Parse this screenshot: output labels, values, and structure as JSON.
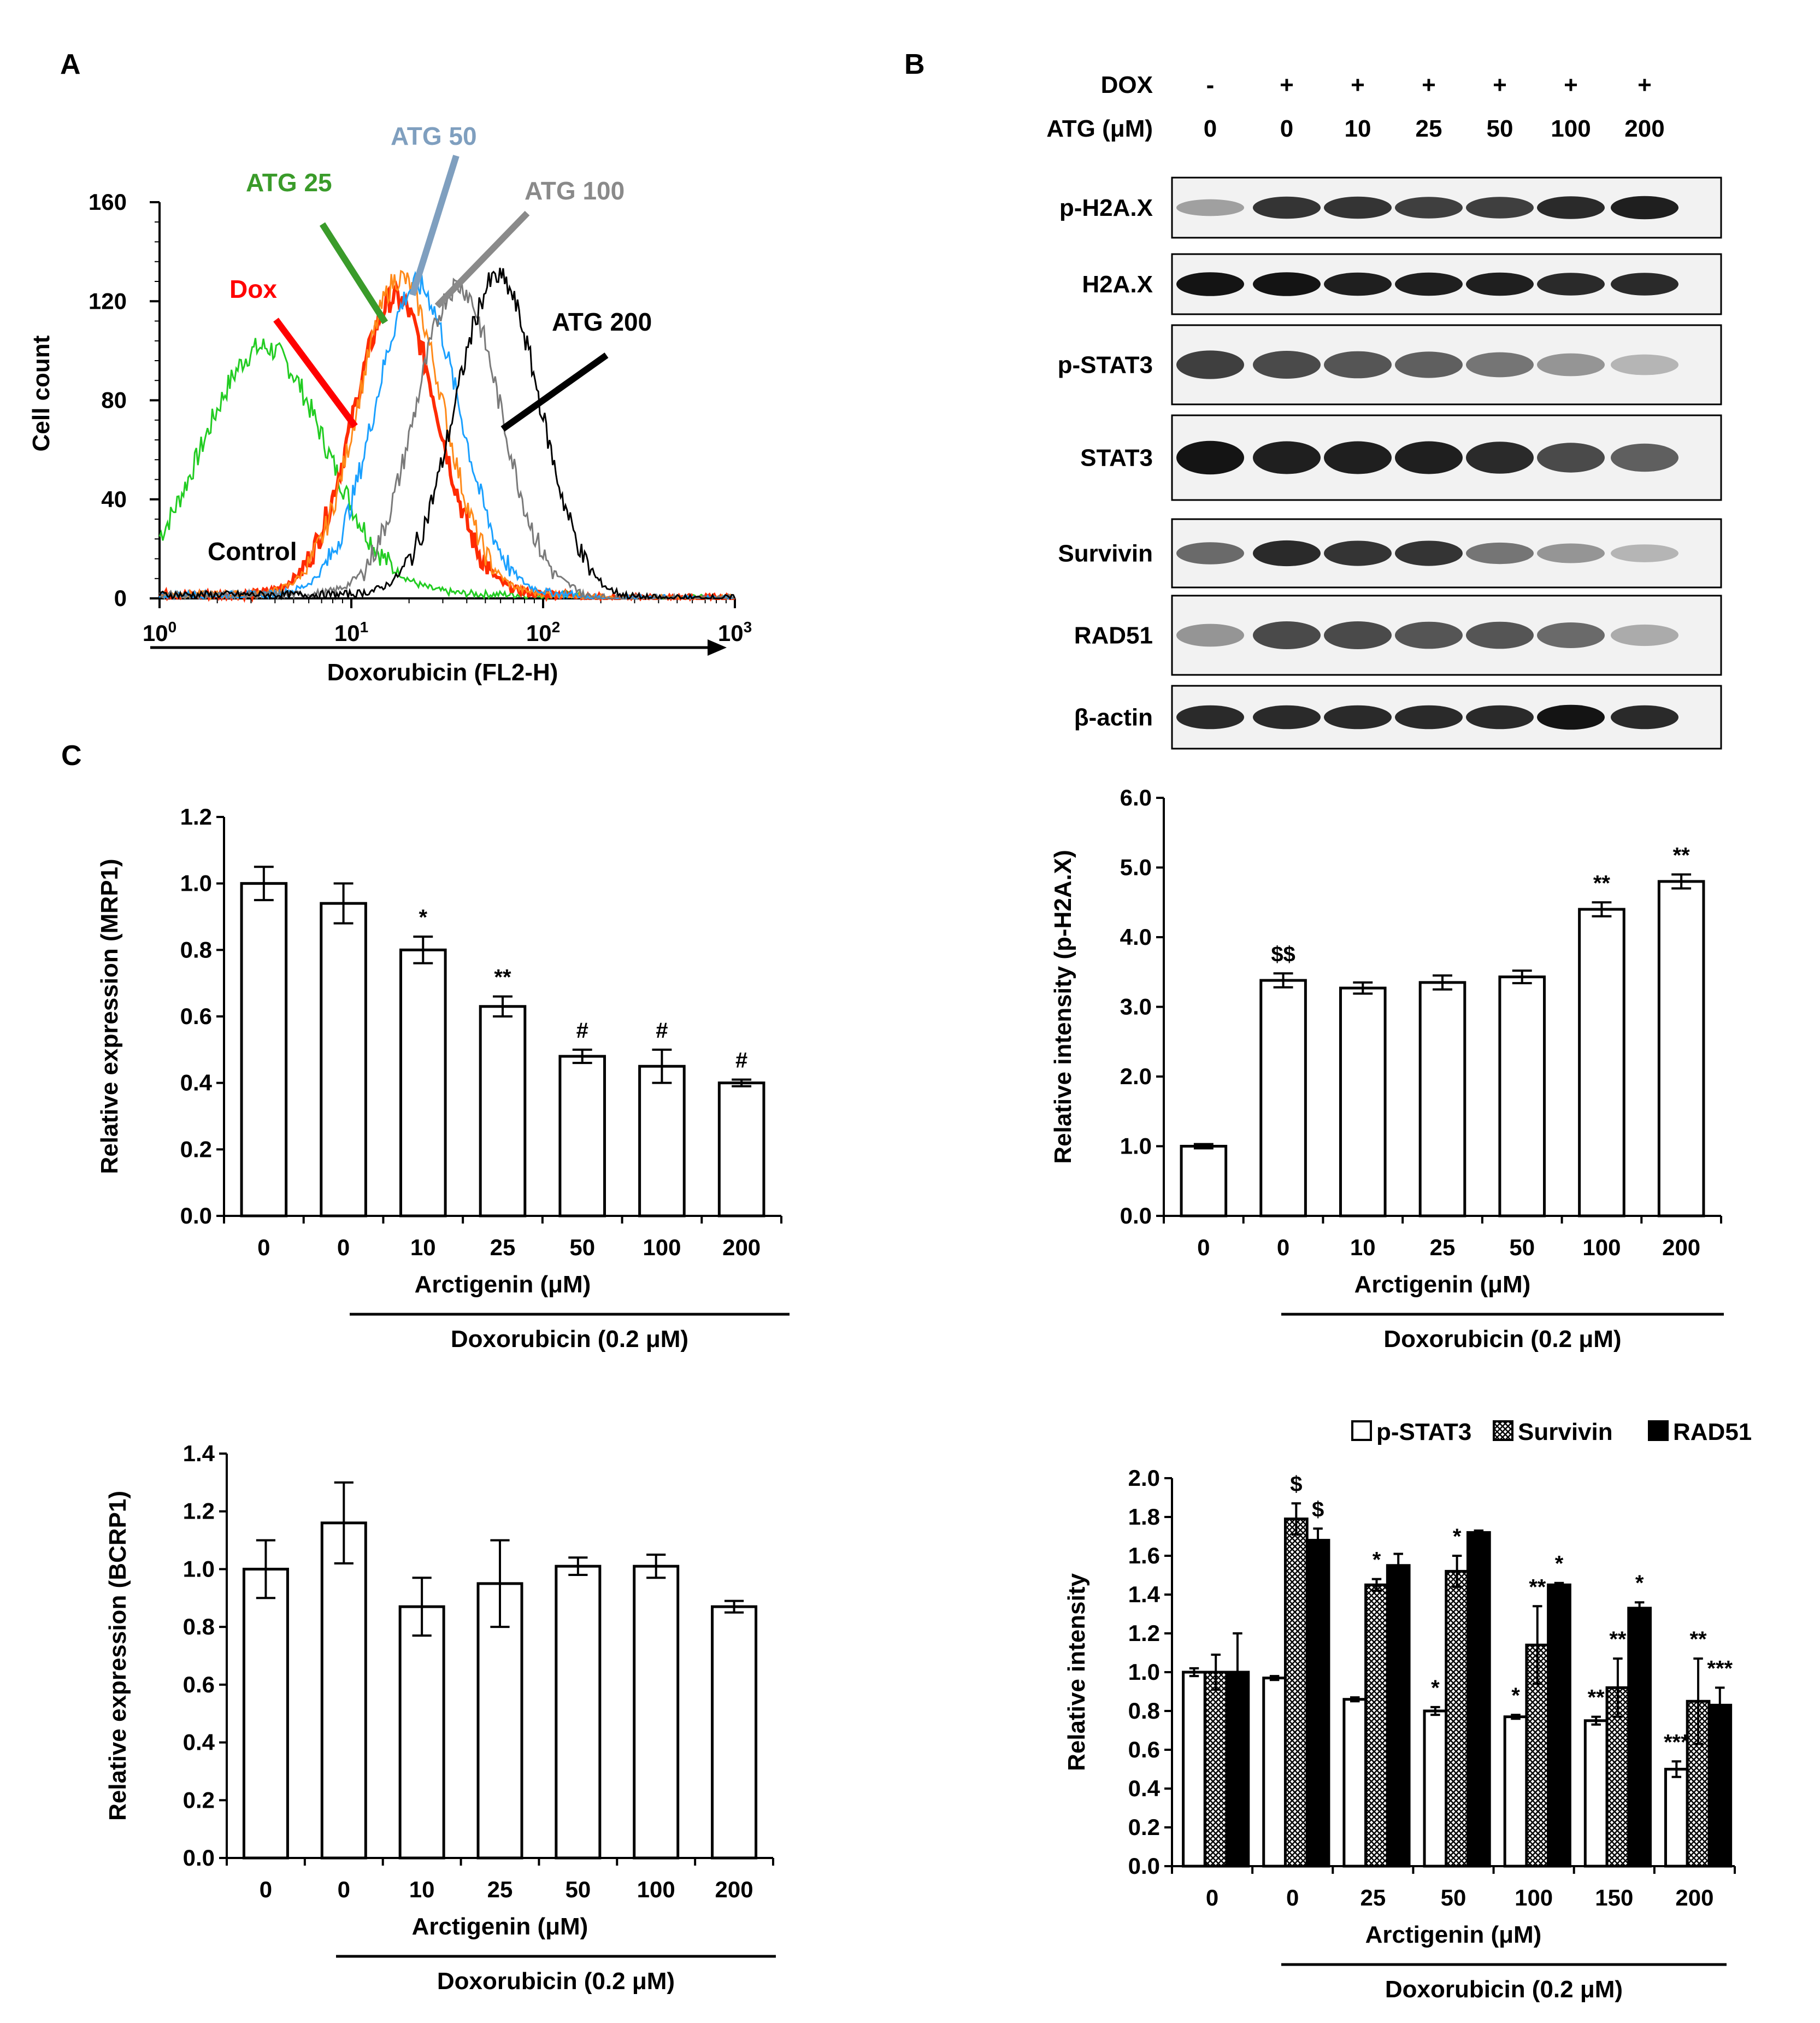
{
  "panels": {
    "A": "A",
    "B": "B",
    "C": "C"
  },
  "chart_data": [
    {
      "id": "flow",
      "type": "line",
      "xlabel": "Doxorubicin (FL2-H)",
      "ylabel": "Cell count",
      "xscale": "log",
      "xlim": [
        1,
        1000
      ],
      "ylim": [
        0,
        160
      ],
      "xticks": [
        {
          "v": 1,
          "b": "10",
          "e": "0"
        },
        {
          "v": 10,
          "b": "10",
          "e": "1"
        },
        {
          "v": 100,
          "b": "10",
          "e": "2"
        },
        {
          "v": 1000,
          "b": "10",
          "e": "3"
        }
      ],
      "yticks": [
        0,
        40,
        80,
        120,
        160
      ],
      "series": [
        {
          "name": "Control",
          "color": "#22cc22",
          "peak_x": 3.5,
          "peak_y": 100
        },
        {
          "name": "Dox",
          "color": "#ff2a00",
          "peak_x": 17,
          "peak_y": 120
        },
        {
          "name": "ATG 25",
          "color": "#ff8a1a",
          "peak_x": 18,
          "peak_y": 128
        },
        {
          "name": "ATG 50",
          "color": "#1aa0ff",
          "peak_x": 22,
          "peak_y": 125
        },
        {
          "name": "ATG 100",
          "color": "#7a7a7a",
          "peak_x": 36,
          "peak_y": 125
        },
        {
          "name": "ATG 200",
          "color": "#000000",
          "peak_x": 58,
          "peak_y": 128
        }
      ],
      "labels": [
        {
          "text": "ATG 25",
          "color": "#3a9b2a"
        },
        {
          "text": "ATG 50",
          "color": "#7f9fbf"
        },
        {
          "text": "ATG 100",
          "color": "#8a8a8a"
        },
        {
          "text": "Dox",
          "color": "#ff0000"
        },
        {
          "text": "ATG 200",
          "color": "#000000"
        },
        {
          "text": "Control",
          "color": "#000000"
        }
      ]
    },
    {
      "id": "mrp1",
      "type": "bar",
      "categories": [
        "0",
        "0",
        "10",
        "25",
        "50",
        "100",
        "200"
      ],
      "values": [
        1.0,
        0.94,
        0.8,
        0.63,
        0.48,
        0.45,
        0.4
      ],
      "errors": [
        0.05,
        0.06,
        0.04,
        0.03,
        0.02,
        0.05,
        0.01
      ],
      "annotations": [
        "",
        "",
        "*",
        "**",
        "#",
        "#",
        "#"
      ],
      "ylabel": "Relative expression (MRP1)",
      "xlabel": "Arctigenin (μM)",
      "treatment": "Doxorubicin (0.2 μM)",
      "ylim": [
        0,
        1.2
      ],
      "yticks": [
        "0.0",
        "0.2",
        "0.4",
        "0.6",
        "0.8",
        "1.0",
        "1.2"
      ]
    },
    {
      "id": "bcrp1",
      "type": "bar",
      "categories": [
        "0",
        "0",
        "10",
        "25",
        "50",
        "100",
        "200"
      ],
      "values": [
        1.0,
        1.16,
        0.87,
        0.95,
        1.01,
        1.01,
        0.87
      ],
      "errors": [
        0.1,
        0.14,
        0.1,
        0.15,
        0.03,
        0.04,
        0.02
      ],
      "annotations": [
        "",
        "",
        "",
        "",
        "",
        "",
        ""
      ],
      "ylabel": "Relative expression (BCRP1)",
      "xlabel": "Arctigenin (μM)",
      "treatment": "Doxorubicin (0.2 μM)",
      "ylim": [
        0,
        1.4
      ],
      "yticks": [
        "0.0",
        "0.2",
        "0.4",
        "0.6",
        "0.8",
        "1.0",
        "1.2",
        "1.4"
      ]
    },
    {
      "id": "ph2ax",
      "type": "bar",
      "categories": [
        "0",
        "0",
        "10",
        "25",
        "50",
        "100",
        "200"
      ],
      "values": [
        1.0,
        3.38,
        3.27,
        3.35,
        3.43,
        4.4,
        4.8
      ],
      "errors": [
        0.03,
        0.1,
        0.08,
        0.1,
        0.09,
        0.1,
        0.1
      ],
      "annotations": [
        "",
        "$$",
        "",
        "",
        "",
        "**",
        "**"
      ],
      "ylabel": "Relative intensity (p-H2A.X)",
      "xlabel": "Arctigenin (μM)",
      "treatment": "Doxorubicin (0.2 μM)",
      "ylim": [
        0,
        6
      ],
      "yticks": [
        "0.0",
        "1.0",
        "2.0",
        "3.0",
        "4.0",
        "5.0",
        "6.0"
      ]
    },
    {
      "id": "grouped",
      "type": "bar",
      "categories": [
        "0",
        "0",
        "25",
        "50",
        "100",
        "150",
        "200"
      ],
      "series": [
        {
          "name": "p-STAT3",
          "values": [
            1.0,
            0.97,
            0.86,
            0.8,
            0.77,
            0.75,
            0.5
          ],
          "errors": [
            0.02,
            0.01,
            0.01,
            0.02,
            0.01,
            0.02,
            0.04
          ],
          "annotations": [
            "",
            "",
            "",
            "*",
            "*",
            "**",
            "***"
          ]
        },
        {
          "name": "Survivin",
          "values": [
            1.0,
            1.79,
            1.45,
            1.52,
            1.14,
            0.92,
            0.85
          ],
          "errors": [
            0.09,
            0.08,
            0.03,
            0.08,
            0.2,
            0.15,
            0.22
          ],
          "annotations": [
            "",
            "$",
            "*",
            "*",
            "**",
            "**",
            "**"
          ]
        },
        {
          "name": "RAD51",
          "values": [
            1.0,
            1.68,
            1.55,
            1.72,
            1.45,
            1.33,
            0.83
          ],
          "errors": [
            0.2,
            0.06,
            0.06,
            0.01,
            0.01,
            0.03,
            0.09
          ],
          "annotations": [
            "",
            "$",
            "",
            "",
            "*",
            "*",
            "***"
          ]
        }
      ],
      "ylabel": "Relative intensity",
      "xlabel": "Arctigenin (μM)",
      "treatment": "Doxorubicin (0.2 μM)",
      "ylim": [
        0,
        2
      ],
      "yticks": [
        "0.0",
        "0.2",
        "0.4",
        "0.6",
        "0.8",
        "1.0",
        "1.2",
        "1.4",
        "1.6",
        "1.8",
        "2.0"
      ],
      "legend": "top-right"
    },
    {
      "id": "western",
      "type": "table",
      "header_rows": [
        {
          "label": "DOX",
          "values": [
            "-",
            "+",
            "+",
            "+",
            "+",
            "+",
            "+"
          ]
        },
        {
          "label": "ATG (μM)",
          "values": [
            "0",
            "0",
            "10",
            "25",
            "50",
            "100",
            "200"
          ]
        }
      ],
      "blots": [
        {
          "name": "p-H2A.X",
          "intensities": [
            0.35,
            0.85,
            0.85,
            0.8,
            0.8,
            0.9,
            0.95
          ]
        },
        {
          "name": "H2A.X",
          "intensities": [
            1,
            1,
            0.95,
            0.95,
            0.95,
            0.9,
            0.9
          ]
        },
        {
          "name": "p-STAT3",
          "intensities": [
            0.8,
            0.75,
            0.7,
            0.65,
            0.55,
            0.4,
            0.25
          ]
        },
        {
          "name": "STAT3",
          "intensities": [
            1,
            0.95,
            0.95,
            0.95,
            0.9,
            0.75,
            0.65
          ]
        },
        {
          "name": "Survivin",
          "intensities": [
            0.6,
            0.9,
            0.85,
            0.85,
            0.55,
            0.4,
            0.25
          ]
        },
        {
          "name": "RAD51",
          "intensities": [
            0.4,
            0.75,
            0.75,
            0.7,
            0.7,
            0.6,
            0.3
          ]
        },
        {
          "name": "β-actin",
          "intensities": [
            0.9,
            0.9,
            0.9,
            0.9,
            0.9,
            1,
            0.9
          ]
        }
      ]
    }
  ]
}
